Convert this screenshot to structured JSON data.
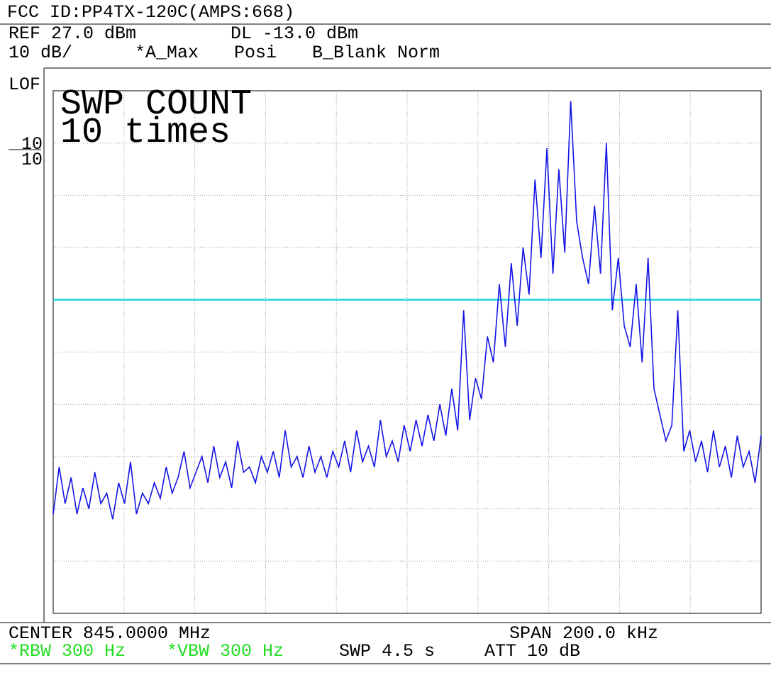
{
  "chart_data": {
    "type": "line",
    "title": "FCC ID:PP4TX-120C(AMPS:668)",
    "annotations": [
      {
        "text": "REF 27.0 dBm",
        "color": "#000000"
      },
      {
        "text": "DL -13.0 dBm",
        "color": "#000000"
      },
      {
        "text": "10 dB/",
        "color": "#000000"
      },
      {
        "text": "*A_Max",
        "color": "#000000"
      },
      {
        "text": "Posi",
        "color": "#000000"
      },
      {
        "text": "B_Blank Norm",
        "color": "#000000"
      },
      {
        "text": "LOF",
        "color": "#000000"
      },
      {
        "text": "10",
        "color": "#000000"
      },
      {
        "text": "10",
        "color": "#000000"
      },
      {
        "text": "SWP COUNT",
        "color": "#000000"
      },
      {
        "text": "10 times",
        "color": "#000000"
      },
      {
        "text": "CENTER 845.0000 MHz",
        "color": "#000000"
      },
      {
        "text": "SPAN 200.0 kHz",
        "color": "#000000"
      },
      {
        "text": "*RBW 300 Hz",
        "color": "#22dd22"
      },
      {
        "text": "*VBW 300 Hz",
        "color": "#22dd22"
      },
      {
        "text": "SWP 4.5 s",
        "color": "#000000"
      },
      {
        "text": "ATT 10 dB",
        "color": "#000000"
      }
    ],
    "series": [
      {
        "color": "#1414e6",
        "values": [
          -54,
          -45,
          -52,
          -47,
          -54,
          -49,
          -53,
          -46,
          -52,
          -50,
          -55,
          -48,
          -52,
          -44,
          -54,
          -50,
          -52,
          -48,
          -51,
          -45,
          -50,
          -47,
          -42,
          -49,
          -46,
          -43,
          -48,
          -41,
          -47,
          -44,
          -49,
          -40,
          -46,
          -45,
          -48,
          -43,
          -46,
          -42,
          -47,
          -38,
          -45,
          -43,
          -47,
          -41,
          -46,
          -43,
          -47,
          -42,
          -45,
          -40,
          -46,
          -38,
          -44,
          -41,
          -45,
          -36,
          -43,
          -40,
          -44,
          -37,
          -42,
          -36,
          -41,
          -35,
          -40,
          -33,
          -39,
          -30,
          -38,
          -15,
          -36,
          -28,
          -32,
          -20,
          -25,
          -10,
          -22,
          -6,
          -18,
          -3,
          -12,
          10,
          -5,
          16,
          -8,
          12,
          -4,
          25,
          2,
          -5,
          -10,
          5,
          -8,
          17,
          -15,
          -5,
          -18,
          -22,
          -10,
          -25,
          -5,
          -30,
          -35,
          -40,
          -37,
          -15,
          -42,
          -38,
          -44,
          -40,
          -46,
          -38,
          -45,
          -41,
          -47,
          -39,
          -45,
          -42,
          -48,
          -39
        ]
      }
    ],
    "display_line": {
      "value": -13,
      "color": "#22d4e6"
    },
    "ylim": [
      -73,
      27
    ],
    "yticks": [
      -73,
      -63,
      -53,
      -43,
      -33,
      -23,
      -13,
      -3,
      7,
      17,
      27
    ],
    "xlim": [
      844.9,
      845.1
    ],
    "xticks": [
      844.9,
      844.92,
      844.94,
      844.96,
      844.98,
      845.0,
      845.02,
      845.04,
      845.06,
      845.08,
      845.1
    ],
    "grid": true
  }
}
